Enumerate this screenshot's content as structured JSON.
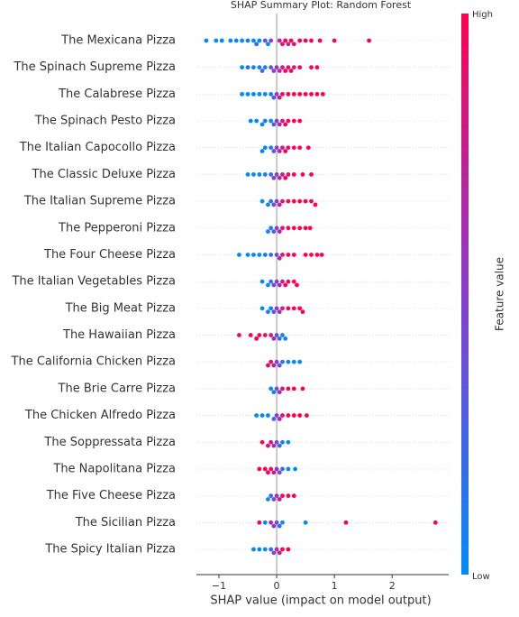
{
  "chart_data": {
    "type": "beeswarm",
    "title": "SHAP Summary Plot: Random Forest",
    "xlabel": "SHAP value (impact on model output)",
    "colorbar_label": "Feature value",
    "colorbar_high": "High",
    "colorbar_low": "Low",
    "colormap": [
      "#008bfb",
      "#8a3cd0",
      "#ff0052"
    ],
    "xlim": [
      -1.39,
      2.98
    ],
    "xticks": [
      {
        "value": -1,
        "label": "−1"
      },
      0,
      1,
      2
    ],
    "rows": [
      {
        "feature": "The Mexicana Pizza",
        "shap": [
          -1.22,
          -1.05,
          -0.95,
          -0.8,
          -0.7,
          -0.6,
          -0.5,
          -0.4,
          -0.35,
          -0.3,
          -0.2,
          -0.15,
          -0.1,
          0.05,
          0.1,
          0.15,
          0.2,
          0.25,
          0.3,
          0.4,
          0.5,
          0.6,
          0.75,
          1.0,
          1.6
        ],
        "fv": [
          0,
          0,
          0,
          0,
          0,
          0,
          0.1,
          0,
          0.2,
          0,
          0.3,
          0,
          0.5,
          0.8,
          0.9,
          1,
          0.7,
          1,
          0.9,
          1,
          1,
          1,
          1,
          1,
          1
        ]
      },
      {
        "feature": "The Spinach Supreme Pizza",
        "shap": [
          -0.6,
          -0.5,
          -0.4,
          -0.3,
          -0.25,
          -0.2,
          -0.1,
          -0.05,
          0,
          0.05,
          0.1,
          0.15,
          0.2,
          0.25,
          0.3,
          0.4,
          0.6,
          0.7
        ],
        "fv": [
          0,
          0.2,
          0,
          0.1,
          0.3,
          0,
          0.4,
          0.5,
          0.6,
          0.7,
          0.8,
          1,
          0.9,
          1,
          0.8,
          1,
          1,
          1
        ]
      },
      {
        "feature": "The Calabrese Pizza",
        "shap": [
          -0.6,
          -0.5,
          -0.4,
          -0.3,
          -0.2,
          -0.1,
          -0.05,
          0,
          0.05,
          0.1,
          0.2,
          0.3,
          0.4,
          0.5,
          0.6,
          0.7,
          0.8
        ],
        "fv": [
          0,
          0,
          0,
          0,
          0,
          0.1,
          0.3,
          0.5,
          0.8,
          1,
          1,
          1,
          1,
          1,
          1,
          1,
          1
        ]
      },
      {
        "feature": "The Spinach Pesto Pizza",
        "shap": [
          -0.45,
          -0.35,
          -0.25,
          -0.2,
          -0.1,
          -0.05,
          0,
          0.05,
          0.1,
          0.15,
          0.2,
          0.3,
          0.4
        ],
        "fv": [
          0,
          0,
          0,
          0.1,
          0,
          0.3,
          0.5,
          0.7,
          0.8,
          1,
          0.9,
          1,
          1
        ]
      },
      {
        "feature": "The Italian Capocollo Pizza",
        "shap": [
          -0.25,
          -0.2,
          -0.1,
          -0.05,
          0,
          0.05,
          0.1,
          0.15,
          0.2,
          0.3,
          0.4,
          0.55
        ],
        "fv": [
          0,
          0,
          0.1,
          0.3,
          0.5,
          0.7,
          0.8,
          1,
          0.9,
          1,
          1,
          1
        ]
      },
      {
        "feature": "The Classic Deluxe Pizza",
        "shap": [
          -0.5,
          -0.4,
          -0.3,
          -0.2,
          -0.1,
          -0.05,
          0,
          0.05,
          0.1,
          0.15,
          0.2,
          0.3,
          0.45,
          0.6
        ],
        "fv": [
          0,
          0,
          0,
          0.1,
          0.2,
          0.4,
          0.5,
          0.7,
          0.8,
          1,
          0.9,
          1,
          1,
          1
        ]
      },
      {
        "feature": "The Italian Supreme Pizza",
        "shap": [
          -0.25,
          -0.15,
          -0.1,
          -0.05,
          0,
          0.05,
          0.1,
          0.2,
          0.3,
          0.4,
          0.5,
          0.6,
          0.67
        ],
        "fv": [
          0,
          0,
          0.2,
          0.4,
          0.5,
          0.7,
          0.9,
          1,
          1,
          1,
          1,
          1,
          1
        ]
      },
      {
        "feature": "The Pepperoni Pizza",
        "shap": [
          -0.15,
          -0.1,
          -0.05,
          0,
          0.05,
          0.1,
          0.2,
          0.3,
          0.4,
          0.5,
          0.58
        ],
        "fv": [
          0,
          0.1,
          0.3,
          0.5,
          0.7,
          0.9,
          1,
          1,
          1,
          1,
          1
        ]
      },
      {
        "feature": "The Four Cheese Pizza",
        "shap": [
          -0.65,
          -0.5,
          -0.4,
          -0.3,
          -0.2,
          -0.1,
          0,
          0.05,
          0.1,
          0.2,
          0.3,
          0.5,
          0.6,
          0.7,
          0.78
        ],
        "fv": [
          0,
          0,
          0,
          0,
          0.1,
          0.2,
          0.4,
          0.7,
          0.9,
          1,
          1,
          1,
          1,
          1,
          1
        ]
      },
      {
        "feature": "The Italian Vegetables Pizza",
        "shap": [
          -0.25,
          -0.15,
          -0.1,
          -0.05,
          0,
          0.05,
          0.1,
          0.15,
          0.2,
          0.3,
          0.35
        ],
        "fv": [
          0,
          0,
          0.2,
          0.4,
          0.5,
          0.6,
          0.8,
          1,
          0.9,
          1,
          1
        ]
      },
      {
        "feature": "The Big Meat Pizza",
        "shap": [
          -0.25,
          -0.15,
          -0.1,
          -0.05,
          0,
          0.05,
          0.1,
          0.2,
          0.3,
          0.4,
          0.45
        ],
        "fv": [
          0,
          0,
          0.1,
          0.3,
          0.5,
          0.6,
          0.8,
          1,
          1,
          1,
          1
        ]
      },
      {
        "feature": "The Hawaiian Pizza",
        "shap": [
          -0.65,
          -0.45,
          -0.35,
          -0.3,
          -0.2,
          -0.1,
          -0.05,
          0,
          0.05,
          0.1,
          0.15
        ],
        "fv": [
          1,
          1,
          1,
          1,
          0.9,
          0.8,
          0.6,
          0.4,
          0.2,
          0.1,
          0
        ]
      },
      {
        "feature": "The California Chicken Pizza",
        "shap": [
          -0.15,
          -0.1,
          -0.05,
          0,
          0.05,
          0.1,
          0.2,
          0.3,
          0.4
        ],
        "fv": [
          1,
          0.9,
          0.7,
          0.5,
          0.3,
          0.2,
          0,
          0,
          0
        ]
      },
      {
        "feature": "The Brie Carre Pizza",
        "shap": [
          -0.1,
          -0.05,
          0,
          0.05,
          0.1,
          0.2,
          0.3,
          0.45
        ],
        "fv": [
          0,
          0.1,
          0.3,
          0.6,
          0.9,
          1,
          1,
          1
        ]
      },
      {
        "feature": "The Chicken Alfredo Pizza",
        "shap": [
          -0.35,
          -0.25,
          -0.15,
          -0.05,
          0,
          0.05,
          0.1,
          0.2,
          0.3,
          0.4,
          0.52
        ],
        "fv": [
          0,
          0,
          0,
          0.2,
          0.5,
          0.7,
          0.9,
          1,
          1,
          1,
          1
        ]
      },
      {
        "feature": "The Soppressata Pizza",
        "shap": [
          -0.25,
          -0.15,
          -0.1,
          -0.05,
          0,
          0.05,
          0.1,
          0.2
        ],
        "fv": [
          1,
          0.9,
          0.8,
          0.6,
          0.4,
          0.2,
          0.1,
          0
        ]
      },
      {
        "feature": "The Napolitana Pizza",
        "shap": [
          -0.3,
          -0.2,
          -0.15,
          -0.1,
          -0.05,
          0,
          0.05,
          0.1,
          0.2,
          0.32
        ],
        "fv": [
          1,
          1,
          1,
          0.9,
          0.8,
          0.6,
          0.4,
          0.2,
          0,
          0
        ]
      },
      {
        "feature": "The Five Cheese Pizza",
        "shap": [
          -0.15,
          -0.1,
          -0.05,
          0,
          0.05,
          0.1,
          0.2,
          0.3
        ],
        "fv": [
          0,
          0.2,
          0.4,
          0.6,
          0.8,
          1,
          1,
          1
        ]
      },
      {
        "feature": "The Sicilian Pizza",
        "shap": [
          -0.3,
          -0.2,
          -0.1,
          -0.05,
          0,
          0.05,
          0.1,
          0.5,
          1.2,
          2.75
        ],
        "fv": [
          1,
          0,
          0.7,
          0.5,
          0.4,
          0.2,
          0,
          0,
          1,
          1
        ]
      },
      {
        "feature": "The Spicy Italian Pizza",
        "shap": [
          -0.4,
          -0.3,
          -0.2,
          -0.1,
          -0.05,
          0,
          0.05,
          0.1,
          0.2
        ],
        "fv": [
          0,
          0,
          0,
          0.2,
          0.4,
          0.6,
          0.8,
          1,
          1
        ]
      }
    ]
  }
}
